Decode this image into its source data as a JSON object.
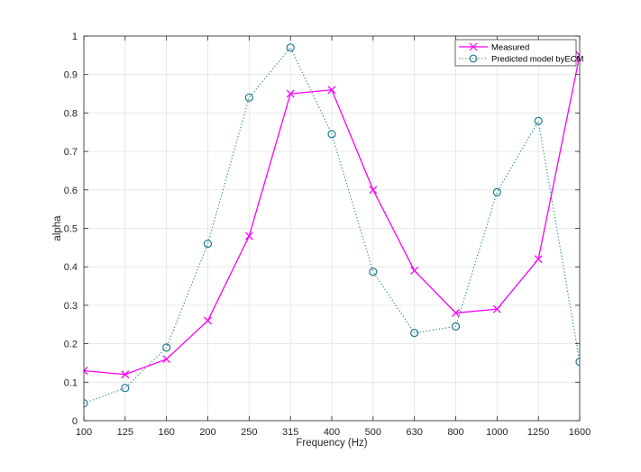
{
  "chart_data": {
    "type": "line",
    "xlabel": "Frequency (Hz)",
    "ylabel": "alpha",
    "ylim": [
      0,
      1
    ],
    "yticks": [
      "0",
      "0.1",
      "0.2",
      "0.3",
      "0.4",
      "0.5",
      "0.6",
      "0.7",
      "0.8",
      "0.9",
      "1"
    ],
    "categories": [
      "100",
      "125",
      "160",
      "200",
      "250",
      "315",
      "400",
      "500",
      "630",
      "800",
      "1000",
      "1250",
      "1600"
    ],
    "grid": true,
    "legend_position": "top-right",
    "series": [
      {
        "name": "Measured",
        "color": "#ff00ff",
        "line_style": "solid",
        "marker": "x",
        "values": [
          0.13,
          0.12,
          0.16,
          0.26,
          0.48,
          0.85,
          0.86,
          0.6,
          0.39,
          0.28,
          0.29,
          0.42,
          0.95
        ]
      },
      {
        "name": "Predicted model byECM",
        "color": "#1f7a8c",
        "line_style": "dotted",
        "marker": "o",
        "values": [
          0.045,
          0.085,
          0.19,
          0.46,
          0.84,
          0.97,
          0.745,
          0.387,
          0.228,
          0.245,
          0.594,
          0.779,
          0.153
        ]
      }
    ]
  }
}
